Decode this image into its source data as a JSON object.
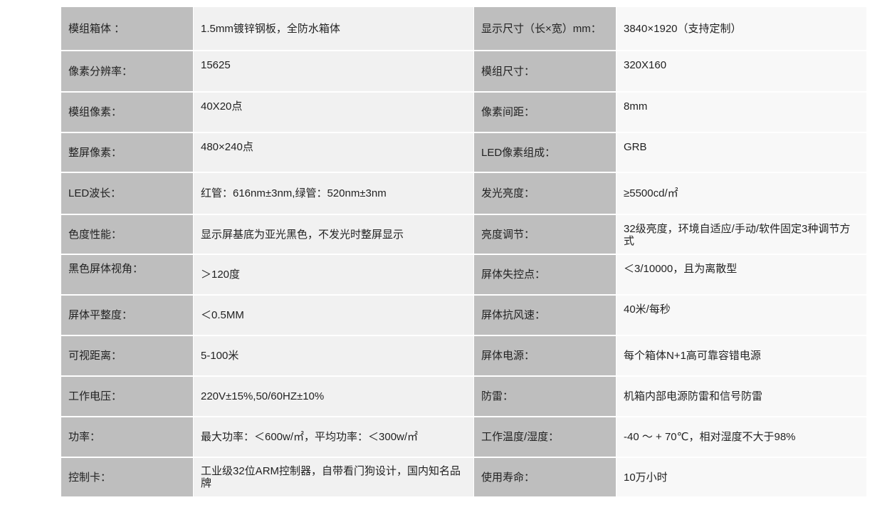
{
  "specs": [
    {
      "label1": "模组箱体 ：",
      "value1": "1.5mm镀锌钢板，全防水箱体",
      "label2": "显示尺寸（长×宽）mm：",
      "value2": "3840×1920（支持定制）"
    },
    {
      "label1": "像素分辨率：",
      "value1": "15625",
      "label2": "模组尺寸：",
      "value2": "320X160"
    },
    {
      "label1": "模组像素：",
      "value1": "40X20点",
      "label2": "像素间距：",
      "value2": "8mm"
    },
    {
      "label1": "整屏像素：",
      "value1": "480×240点",
      "label2": "LED像素组成：",
      "value2": "GRB"
    },
    {
      "label1": "LED波长：",
      "value1": "红管：616nm±3nm,绿管：520nm±3nm",
      "label2": "发光亮度：",
      "value2": " ≥5500cd/㎡"
    },
    {
      "label1": "色度性能：",
      "value1": "显示屏基底为亚光黑色，不发光时整屏显示",
      "label2": "亮度调节：",
      "value2": "32级亮度，环境自适应/手动/软件固定3种调节方式"
    },
    {
      "label1": "黑色屏体视角：",
      "value1": "＞120度",
      "label2": "屏体失控点：",
      "value2": "＜3/10000，且为离散型"
    },
    {
      "label1": "屏体平整度：",
      "value1": "＜0.5MM",
      "label2": "屏体抗风速：",
      "value2": "40米/每秒"
    },
    {
      "label1": "可视距离：",
      "value1": "5-100米",
      "label2": "屏体电源：",
      "value2": "每个箱体N+1高可靠容错电源"
    },
    {
      "label1": "工作电压：",
      "value1": "220V±15%,50/60HZ±10%",
      "label2": "防雷：",
      "value2": "机箱内部电源防雷和信号防雷"
    },
    {
      "label1": "功率：",
      "value1": "最大功率：＜600w/㎡，平均功率：＜300w/㎡",
      "label2": "工作温度/湿度：",
      "value2": "-40 ～ + 70℃，相对湿度不大于98%"
    },
    {
      "label1": "控制卡：",
      "value1": "工业级32位ARM控制器，自带看门狗设计，国内知名品牌",
      "label2": "使用寿命：",
      "value2": "10万小时"
    }
  ]
}
